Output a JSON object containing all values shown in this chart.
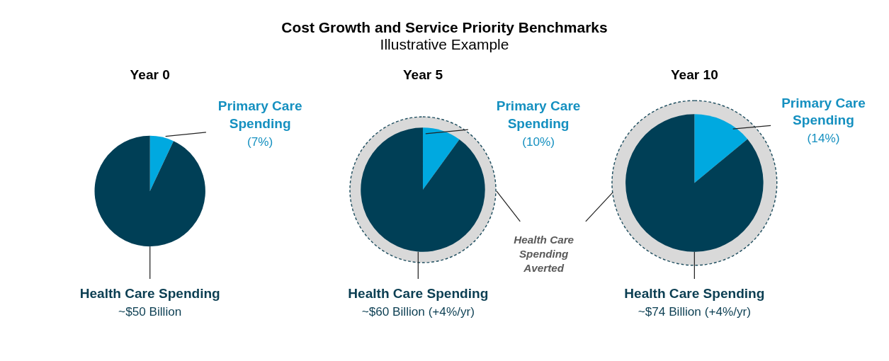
{
  "chart_data": [
    {
      "type": "pie",
      "title": "Year 0",
      "categories": [
        "Primary Care Spending",
        "Health Care Spending"
      ],
      "values": [
        7,
        93
      ],
      "colors": [
        "#00a9e0",
        "#003f56"
      ],
      "value_labels": [
        "(7%)",
        null
      ],
      "annotations": [
        "Cost Growth and Service Priority Benchmarks",
        "Illustrative Example",
        "~$50 Billion"
      ]
    },
    {
      "type": "pie",
      "title": "Year 5",
      "categories": [
        "Primary Care Spending",
        "Health Care Spending"
      ],
      "values": [
        10,
        90
      ],
      "colors": [
        "#00a9e0",
        "#003f56"
      ],
      "value_labels": [
        "(10%)",
        null
      ],
      "annotations": [
        "~$60 Billion (+4%/yr)",
        "Health Care Spending Averted"
      ]
    },
    {
      "type": "pie",
      "title": "Year 10",
      "categories": [
        "Primary Care Spending",
        "Health Care Spending"
      ],
      "values": [
        14,
        86
      ],
      "colors": [
        "#00a9e0",
        "#003f56"
      ],
      "value_labels": [
        "(14%)",
        null
      ],
      "annotations": [
        "~$74 Billion (+4%/yr)"
      ]
    }
  ]
}
